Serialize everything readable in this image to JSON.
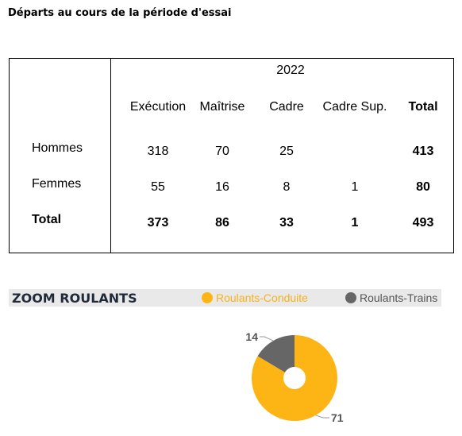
{
  "heading": "Départs au cours de la période d'essai",
  "table": {
    "year": "2022",
    "columns": [
      "Exécution",
      "Maîtrise",
      "Cadre",
      "Cadre Sup.",
      "Total"
    ],
    "rows": [
      {
        "label": "Hommes",
        "values": [
          "318",
          "70",
          "25",
          "",
          "413"
        ]
      },
      {
        "label": "Femmes",
        "values": [
          "55",
          "16",
          "8",
          "1",
          "80"
        ]
      },
      {
        "label": "Total",
        "values": [
          "373",
          "86",
          "33",
          "1",
          "493"
        ]
      }
    ]
  },
  "zoom": {
    "title": "ZOOM ROULANTS",
    "legend": [
      {
        "label": "Roulants-Conduite",
        "color": "#FDB515"
      },
      {
        "label": "Roulants-Trains",
        "color": "#666666"
      }
    ]
  },
  "chart_data": {
    "type": "pie",
    "categories": [
      "Roulants-Conduite",
      "Roulants-Trains"
    ],
    "values": [
      71,
      14
    ],
    "colors": [
      "#FDB515",
      "#666666"
    ],
    "title": "",
    "donut": true
  }
}
